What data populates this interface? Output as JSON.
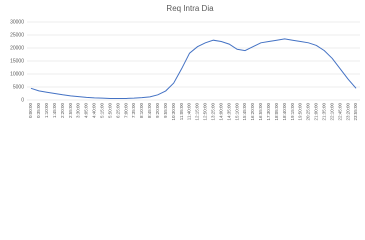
{
  "chart_data": {
    "type": "line",
    "title": "Req Intra Dia",
    "categories": [
      "0:00:00",
      "0:35:00",
      "1:10:00",
      "1:45:00",
      "2:20:00",
      "2:55:00",
      "3:30:00",
      "4:05:00",
      "4:40:00",
      "5:15:00",
      "5:50:00",
      "6:25:00",
      "7:00:00",
      "7:35:00",
      "8:10:00",
      "8:45:00",
      "9:20:00",
      "9:55:00",
      "10:30:00",
      "11:05:00",
      "11:40:00",
      "12:15:00",
      "12:50:00",
      "13:25:00",
      "14:00:00",
      "14:35:00",
      "15:10:00",
      "15:45:00",
      "16:20:00",
      "16:55:00",
      "17:30:00",
      "18:05:00",
      "18:40:00",
      "19:15:00",
      "19:50:00",
      "20:25:00",
      "21:00:00",
      "21:35:00",
      "22:10:00",
      "22:45:00",
      "23:20:00",
      "23:55:00"
    ],
    "values": [
      4500,
      3500,
      3000,
      2500,
      2000,
      1600,
      1300,
      1000,
      800,
      700,
      600,
      600,
      600,
      700,
      900,
      1200,
      2000,
      3500,
      6500,
      12000,
      18000,
      20500,
      22000,
      23000,
      22500,
      21500,
      19500,
      19000,
      20500,
      22000,
      22500,
      23000,
      23500,
      23000,
      22500,
      22000,
      21000,
      19000,
      16000,
      12000,
      8000,
      4500
    ],
    "color": "#4472c4",
    "ylim": [
      0,
      30000
    ],
    "yticks": [
      0,
      5000,
      10000,
      15000,
      20000,
      25000,
      30000
    ],
    "grid": true
  }
}
